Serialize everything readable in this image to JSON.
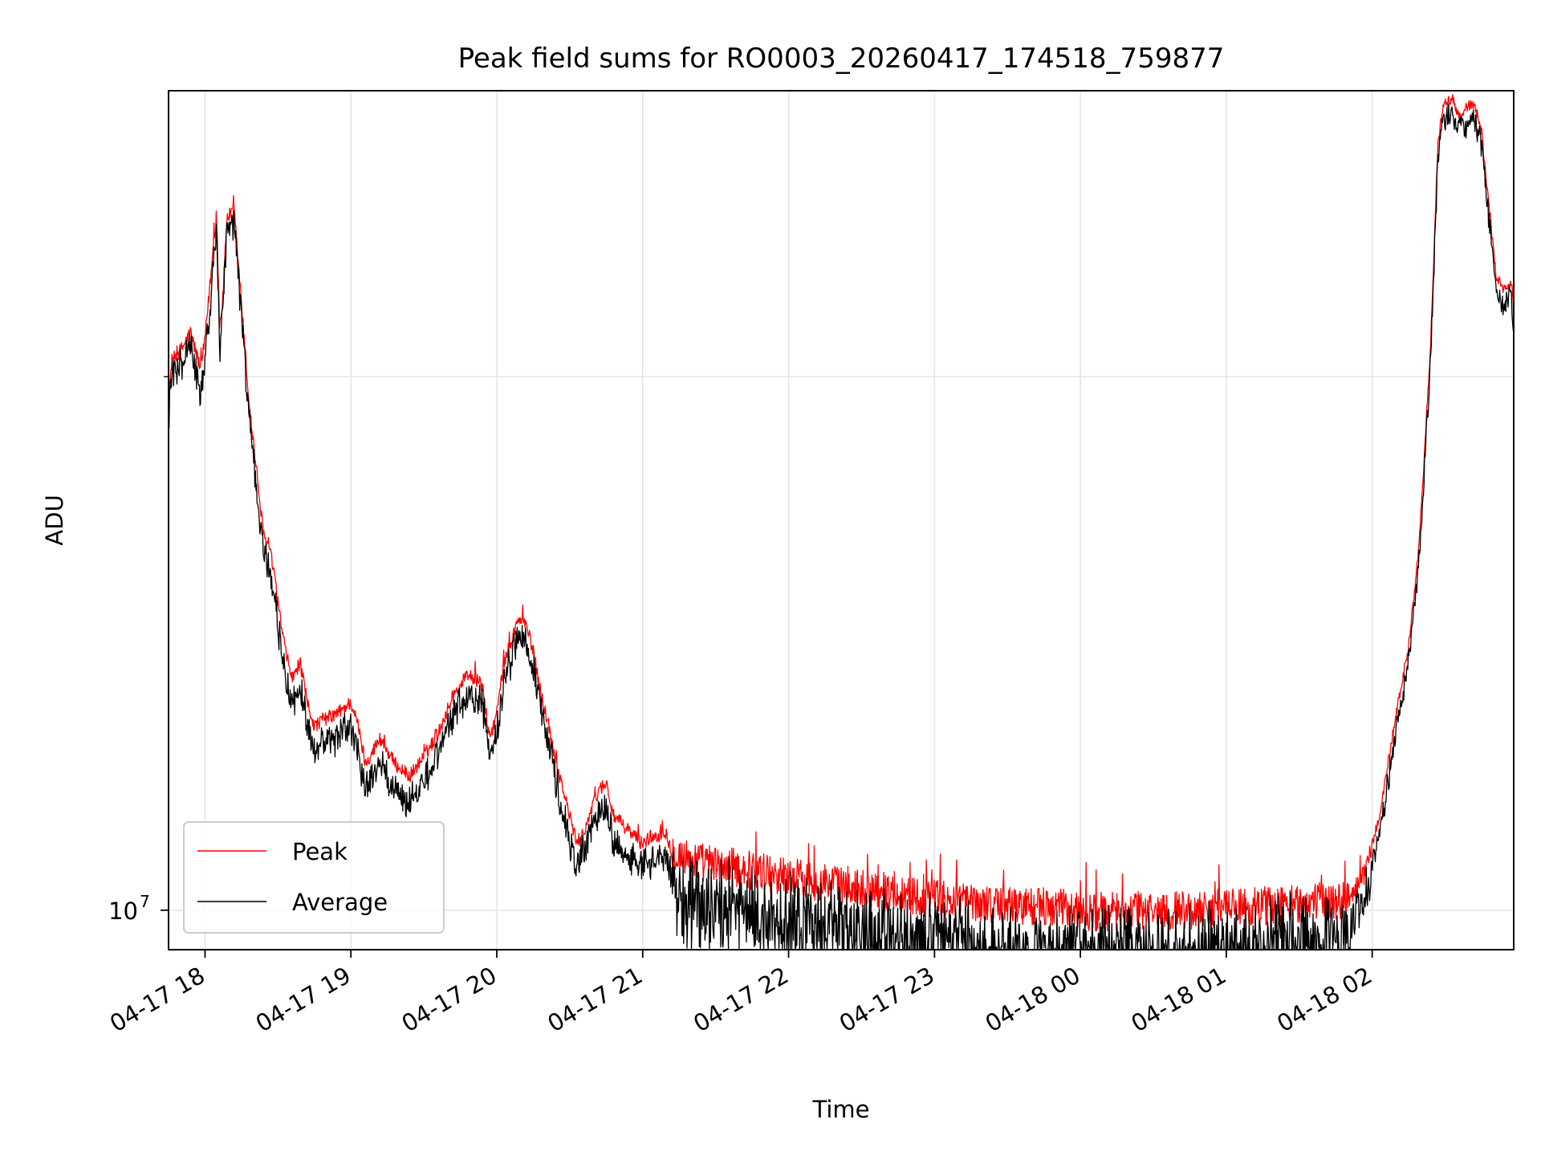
{
  "chart_data": {
    "type": "line",
    "title": "Peak field sums for RO0003_20260417_174518_759877",
    "xlabel": "Time",
    "ylabel": "ADU",
    "yscale": "log",
    "grid": true,
    "legend_position": "lower-left",
    "x_unit": "hours since 04-17 17:00",
    "xlim": [
      17.75,
      26.97
    ],
    "ylim": [
      9500000,
      29000000
    ],
    "x_ticks": [
      {
        "value": 18,
        "label": "04-17 18"
      },
      {
        "value": 19,
        "label": "04-17 19"
      },
      {
        "value": 20,
        "label": "04-17 20"
      },
      {
        "value": 21,
        "label": "04-17 21"
      },
      {
        "value": 22,
        "label": "04-17 22"
      },
      {
        "value": 23,
        "label": "04-17 23"
      },
      {
        "value": 24,
        "label": "04-18 00"
      },
      {
        "value": 25,
        "label": "04-18 01"
      },
      {
        "value": 26,
        "label": "04-18 02"
      }
    ],
    "y_major_ticks": [
      {
        "value": 10000000,
        "label_base": "10",
        "label_exp": "7"
      }
    ],
    "y_minor_ticks": [
      20000000,
      30000000
    ],
    "series": [
      {
        "name": "Peak",
        "color": "#ff0000",
        "x": [
          17.75,
          17.77,
          17.85,
          17.9,
          17.97,
          18.0,
          18.05,
          18.06,
          18.08,
          18.1,
          18.12,
          18.15,
          18.2,
          18.25,
          18.3,
          18.35,
          18.4,
          18.45,
          18.5,
          18.55,
          18.6,
          18.65,
          18.7,
          18.75,
          18.8,
          18.9,
          19.0,
          19.05,
          19.1,
          19.2,
          19.3,
          19.4,
          19.5,
          19.6,
          19.7,
          19.8,
          19.9,
          19.95,
          20.0,
          20.05,
          20.1,
          20.15,
          20.2,
          20.25,
          20.3,
          20.4,
          20.5,
          20.55,
          20.6,
          20.7,
          20.75,
          20.8,
          20.9,
          21.0,
          21.05,
          21.1,
          21.15,
          21.2,
          21.3,
          21.5,
          21.7,
          22.0,
          22.3,
          22.5,
          22.7,
          23.0,
          23.3,
          23.5,
          23.7,
          23.9,
          24.0,
          24.2,
          24.4,
          24.6,
          24.8,
          25.0,
          25.2,
          25.4,
          25.6,
          25.8,
          25.85,
          25.95,
          26.05,
          26.15,
          26.25,
          26.32,
          26.4,
          26.45,
          26.48,
          26.5,
          26.55,
          26.6,
          26.65,
          26.7,
          26.75,
          26.8,
          26.85,
          26.9,
          26.95,
          26.97
        ],
        "y": [
          19300000,
          20400000,
          20800000,
          21200000,
          20200000,
          21000000,
          23300000,
          24000000,
          24500000,
          21400000,
          22000000,
          24600000,
          24800000,
          22000000,
          19400000,
          17800000,
          16300000,
          15900000,
          14900000,
          14000000,
          13500000,
          13800000,
          13100000,
          12700000,
          12800000,
          12900000,
          13100000,
          12700000,
          12100000,
          12500000,
          12100000,
          11900000,
          12200000,
          12600000,
          13200000,
          13600000,
          13400000,
          12500000,
          12900000,
          13800000,
          14200000,
          14600000,
          14500000,
          14000000,
          13300000,
          12200000,
          11300000,
          10900000,
          11100000,
          11700000,
          11800000,
          11300000,
          11100000,
          10900000,
          11000000,
          11000000,
          11100000,
          10800000,
          10700000,
          10600000,
          10550000,
          10450000,
          10350000,
          10300000,
          10230000,
          10150000,
          10100000,
          10070000,
          10050000,
          10020000,
          9980000,
          9980000,
          9990000,
          10000000,
          10010000,
          10030000,
          10050000,
          10080000,
          10100000,
          10130000,
          10170000,
          10500000,
          11300000,
          12700000,
          14100000,
          16000000,
          20800000,
          27000000,
          28200000,
          28500000,
          28700000,
          28000000,
          28400000,
          28500000,
          27500000,
          25000000,
          22800000,
          22400000,
          22600000,
          21800000
        ]
      },
      {
        "name": "Average",
        "color": "#000000",
        "x": [
          17.75,
          17.77,
          17.85,
          17.9,
          17.97,
          18.0,
          18.05,
          18.06,
          18.08,
          18.1,
          18.12,
          18.15,
          18.2,
          18.25,
          18.3,
          18.35,
          18.4,
          18.45,
          18.5,
          18.55,
          18.6,
          18.65,
          18.7,
          18.75,
          18.8,
          18.9,
          19.0,
          19.05,
          19.1,
          19.2,
          19.3,
          19.4,
          19.5,
          19.6,
          19.7,
          19.8,
          19.9,
          19.95,
          20.0,
          20.05,
          20.1,
          20.15,
          20.2,
          20.25,
          20.3,
          20.4,
          20.5,
          20.55,
          20.6,
          20.7,
          20.75,
          20.8,
          20.9,
          21.0,
          21.05,
          21.1,
          21.15,
          21.2,
          21.3,
          21.5,
          21.7,
          22.0,
          22.3,
          22.5,
          22.7,
          23.0,
          23.3,
          23.5,
          23.7,
          23.9,
          24.0,
          24.2,
          24.4,
          24.6,
          24.8,
          25.0,
          25.2,
          25.4,
          25.6,
          25.8,
          25.85,
          25.95,
          26.05,
          26.15,
          26.25,
          26.32,
          26.4,
          26.45,
          26.48,
          26.5,
          26.55,
          26.6,
          26.65,
          26.7,
          26.75,
          26.8,
          26.85,
          26.9,
          26.95,
          26.97
        ],
        "y": [
          19000000,
          20200000,
          20600000,
          21000000,
          19600000,
          20700000,
          22800000,
          23700000,
          24200000,
          21000000,
          21600000,
          24400000,
          24600000,
          21800000,
          19200000,
          17600000,
          16100000,
          15700000,
          14600000,
          13700000,
          13200000,
          13500000,
          12800000,
          12400000,
          12500000,
          12600000,
          12800000,
          12400000,
          11800000,
          12200000,
          11800000,
          11600000,
          11900000,
          12400000,
          13000000,
          13400000,
          13200000,
          12300000,
          12700000,
          13600000,
          14000000,
          14400000,
          14300000,
          13800000,
          13100000,
          12000000,
          11000000,
          10700000,
          10900000,
          11500000,
          11500000,
          11000000,
          10800000,
          10700000,
          10750000,
          10750000,
          10850000,
          10500000,
          10350000,
          10250000,
          10200000,
          10100000,
          10000000,
          9950000,
          9880000,
          9800000,
          9750000,
          9720000,
          9700000,
          9670000,
          9650000,
          9650000,
          9660000,
          9670000,
          9680000,
          9700000,
          9720000,
          9750000,
          9780000,
          9820000,
          9900000,
          10300000,
          11100000,
          12500000,
          13900000,
          15800000,
          20500000,
          26700000,
          27900000,
          28200000,
          28300000,
          27700000,
          28000000,
          28100000,
          27200000,
          24700000,
          22500000,
          22100000,
          22300000,
          21500000
        ]
      }
    ]
  }
}
